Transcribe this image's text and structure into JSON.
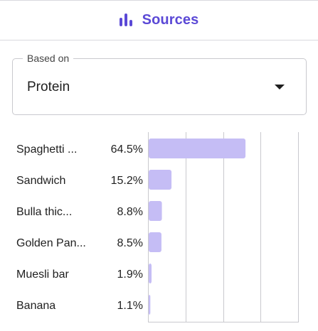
{
  "header": {
    "icon": "bar-chart-icon",
    "title": "Sources"
  },
  "select": {
    "legend": "Based on",
    "value": "Protein",
    "caret_icon": "caret-down-icon"
  },
  "colors": {
    "accent": "#5b49d6",
    "bar": "#c5bdf5",
    "grid": "#c9c9ce"
  },
  "chart_data": {
    "type": "bar",
    "orientation": "horizontal",
    "categories": [
      "Spaghetti ...",
      "Sandwich",
      "Bulla thic...",
      "Golden Pan...",
      "Muesli bar",
      "Banana"
    ],
    "value_labels": [
      "64.5%",
      "15.2%",
      "8.8%",
      "8.5%",
      "1.9%",
      "1.1%"
    ],
    "values": [
      64.5,
      15.2,
      8.8,
      8.5,
      1.9,
      1.1
    ],
    "xlim": [
      0,
      100
    ],
    "grid": true
  }
}
